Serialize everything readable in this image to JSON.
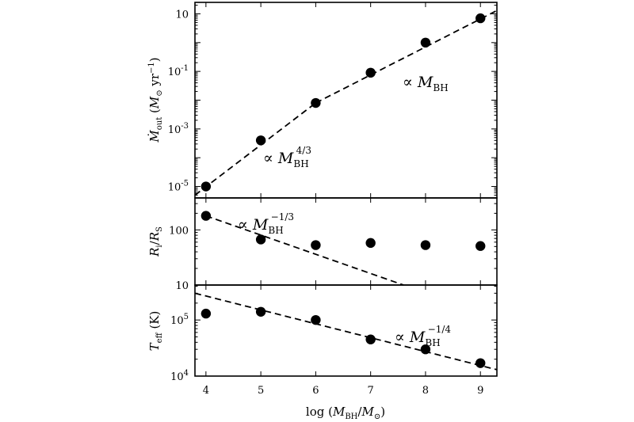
{
  "chart_data": [
    {
      "type": "scatter",
      "panel": "top",
      "xlabel": "log (M_BH/M_⊙)",
      "ylabel": "Ṁ_out (M_⊙ yr⁻¹)",
      "yscale": "log",
      "ylim": [
        4e-06,
        25
      ],
      "yticks": [
        1e-05,
        0.001,
        0.1,
        10
      ],
      "ytick_labels": [
        [
          "10",
          "-5"
        ],
        [
          "10",
          "-3"
        ],
        [
          "10",
          "-1"
        ],
        [
          "10",
          ""
        ]
      ],
      "x": [
        4,
        5,
        6,
        7,
        8,
        9
      ],
      "y": [
        1e-05,
        0.0004,
        0.008,
        0.09,
        1.0,
        7.0
      ],
      "fits": [
        {
          "x": [
            3.8,
            6.0
          ],
          "y": [
            5e-06,
            0.008
          ],
          "style": "dashed"
        },
        {
          "x": [
            6.0,
            9.3
          ],
          "y": [
            0.008,
            13
          ],
          "style": "dashed"
        }
      ],
      "annotations": [
        {
          "prefix": "∝ ",
          "main": "M",
          "sub": "BH",
          "sup": "4/3"
        },
        {
          "prefix": "∝ ",
          "main": "M",
          "sub": "BH",
          "sup": ""
        }
      ]
    },
    {
      "type": "scatter",
      "panel": "middle",
      "ylabel": "R_i / R_S",
      "yscale": "log",
      "ylim": [
        10,
        380
      ],
      "yticks": [
        10,
        100
      ],
      "ytick_labels": [
        [
          "10",
          ""
        ],
        [
          "100",
          ""
        ]
      ],
      "x": [
        4,
        5,
        6,
        7,
        8,
        9
      ],
      "y": [
        180,
        67,
        53,
        58,
        53,
        51
      ],
      "fits": [
        {
          "x": [
            4.0,
            7.6
          ],
          "y": [
            180,
            10
          ],
          "style": "dashed"
        }
      ],
      "annotations": [
        {
          "prefix": "∝ ",
          "main": "M",
          "sub": "BH",
          "sup": "−1/3"
        }
      ]
    },
    {
      "type": "scatter",
      "panel": "bottom",
      "ylabel": "T_eff (K)",
      "yscale": "log",
      "ylim": [
        10000,
        420000
      ],
      "yticks": [
        10000,
        100000
      ],
      "ytick_labels": [
        [
          "10",
          "4"
        ],
        [
          "10",
          "5"
        ]
      ],
      "x": [
        4,
        5,
        6,
        7,
        8,
        9
      ],
      "y": [
        130000,
        140000,
        100000,
        45000,
        30000,
        17000
      ],
      "xticks": [
        4,
        5,
        6,
        7,
        8,
        9
      ],
      "xtick_labels": [
        "4",
        "5",
        "6",
        "7",
        "8",
        "9"
      ],
      "xlim": [
        3.8,
        9.3
      ],
      "fits": [
        {
          "x": [
            3.8,
            9.3
          ],
          "y": [
            300000,
            13000
          ],
          "style": "dashed"
        }
      ],
      "annotations": [
        {
          "prefix": "∝ ",
          "main": "M",
          "sub": "BH",
          "sup": "−1/4"
        }
      ]
    }
  ]
}
